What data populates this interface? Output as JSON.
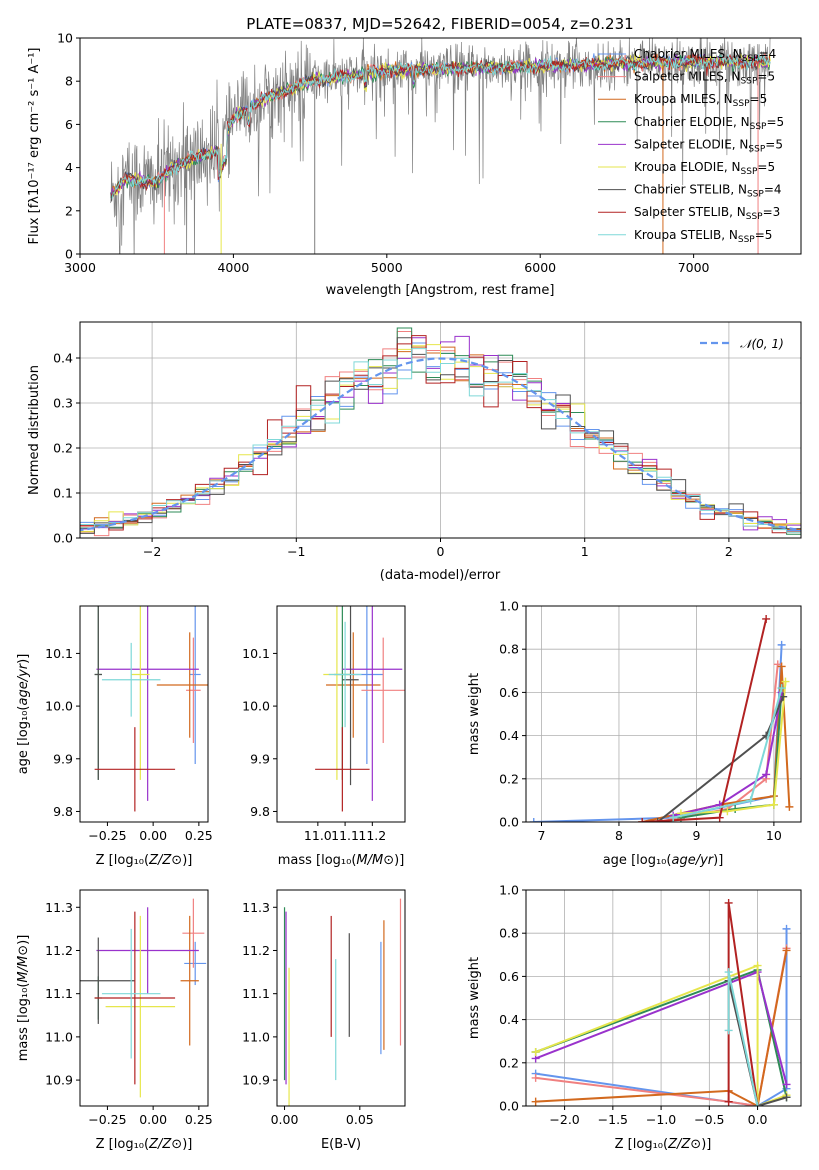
{
  "title": "PLATE=0837, MJD=52642, FIBERID=0054, z=0.231",
  "colors": {
    "chabrier_miles": "#6495ed",
    "salpeter_miles": "#f08080",
    "kroupa_miles": "#d2691e",
    "chabrier_elodie": "#2e8b57",
    "salpeter_elodie": "#9932cc",
    "kroupa_elodie": "#e6e64c",
    "chabrier_stelib": "#505050",
    "salpeter_stelib": "#b22222",
    "kroupa_stelib": "#7fd8d8",
    "data": "#808080",
    "gaussian": "#6495ed"
  },
  "chart_data": [
    {
      "id": "spectrum",
      "type": "line",
      "title": "PLATE=0837, MJD=52642, FIBERID=0054, z=0.231",
      "xlabel": "wavelength [Angstrom, rest frame]",
      "ylabel": "Flux [fλ10⁻¹⁷ erg cm⁻² s⁻¹ A⁻¹]",
      "xlim": [
        3000,
        7700
      ],
      "ylim": [
        0,
        10
      ],
      "xticks": [
        3000,
        4000,
        5000,
        6000,
        7000
      ],
      "yticks": [
        0,
        2,
        4,
        6,
        8,
        10
      ],
      "wavelength_range": [
        3200,
        7500
      ],
      "legend_position": "upper right",
      "legend": [
        {
          "label": "Chabrier MILES, N",
          "sub": "SSP",
          "suffix": "=4",
          "color_key": "chabrier_miles"
        },
        {
          "label": "Salpeter MILES, N",
          "sub": "SSP",
          "suffix": "=5",
          "color_key": "salpeter_miles"
        },
        {
          "label": "Kroupa MILES, N",
          "sub": "SSP",
          "suffix": "=5",
          "color_key": "kroupa_miles"
        },
        {
          "label": "Chabrier ELODIE, N",
          "sub": "SSP",
          "suffix": "=5",
          "color_key": "chabrier_elodie"
        },
        {
          "label": "Salpeter ELODIE, N",
          "sub": "SSP",
          "suffix": "=5",
          "color_key": "salpeter_elodie"
        },
        {
          "label": "Kroupa ELODIE, N",
          "sub": "SSP",
          "suffix": "=5",
          "color_key": "kroupa_elodie"
        },
        {
          "label": "Chabrier STELIB, N",
          "sub": "SSP",
          "suffix": "=4",
          "color_key": "chabrier_stelib"
        },
        {
          "label": "Salpeter STELIB, N",
          "sub": "SSP",
          "suffix": "=3",
          "color_key": "salpeter_stelib"
        },
        {
          "label": "Kroupa STELIB, N",
          "sub": "SSP",
          "suffix": "=5",
          "color_key": "kroupa_stelib"
        }
      ],
      "continuum_anchors": {
        "x": [
          3200,
          3300,
          3500,
          3600,
          3700,
          3900,
          4000,
          4200,
          4500,
          4800,
          5000,
          5500,
          6000,
          6500,
          7000,
          7400
        ],
        "y": [
          2.7,
          3.5,
          3.3,
          4.0,
          4.3,
          4.8,
          6.3,
          7.2,
          8.0,
          8.3,
          8.5,
          8.6,
          8.7,
          8.8,
          8.9,
          8.9
        ]
      }
    },
    {
      "id": "residuals",
      "type": "histogram",
      "xlabel": "(data-model)/error",
      "ylabel": "Normed distribution",
      "xlim": [
        -2.5,
        2.5
      ],
      "ylim": [
        0,
        0.48
      ],
      "xticks": [
        -2,
        -1,
        0,
        1,
        2
      ],
      "yticks": [
        0.0,
        0.1,
        0.2,
        0.3,
        0.4
      ],
      "legend_position": "upper right",
      "legend": [
        {
          "label": "𝒩(0, 1)",
          "color_key": "gaussian",
          "style": "dashed"
        }
      ],
      "bin_width": 0.1
    },
    {
      "id": "age_vs_Z",
      "type": "errorbar",
      "xlabel": "Z [log₁₀(Z/Z⊙)]",
      "ylabel": "age  [log₁₀(age/yr)]",
      "xlim": [
        -0.4,
        0.3
      ],
      "ylim": [
        9.78,
        10.19
      ],
      "xticks": [
        -0.25,
        0.0,
        0.25
      ],
      "yticks": [
        9.8,
        9.9,
        10.0,
        10.1
      ],
      "points": [
        {
          "color_key": "chabrier_miles",
          "x": 0.23,
          "xerr": 0.03,
          "y": 10.06,
          "yerr": 0.17
        },
        {
          "color_key": "salpeter_miles",
          "x": 0.22,
          "xerr": 0.04,
          "y": 10.03,
          "yerr": 0.1
        },
        {
          "color_key": "kroupa_miles",
          "x": 0.2,
          "xerr": 0.18,
          "y": 10.04,
          "yerr": 0.1
        },
        {
          "color_key": "chabrier_elodie",
          "x": -0.3,
          "xerr": 0.02,
          "y": 10.06,
          "yerr": 0.2
        },
        {
          "color_key": "salpeter_elodie",
          "x": -0.03,
          "xerr": 0.28,
          "y": 10.07,
          "yerr": 0.25
        },
        {
          "color_key": "kroupa_elodie",
          "x": -0.07,
          "xerr": 0.05,
          "y": 10.06,
          "yerr": 0.2
        },
        {
          "color_key": "chabrier_stelib",
          "x": -0.3,
          "xerr": 0.02,
          "y": 10.06,
          "yerr": 0.2
        },
        {
          "color_key": "salpeter_stelib",
          "x": -0.1,
          "xerr": 0.22,
          "y": 9.88,
          "yerr": 0.08
        },
        {
          "color_key": "kroupa_stelib",
          "x": -0.12,
          "xerr": 0.16,
          "y": 10.05,
          "yerr": 0.07
        }
      ]
    },
    {
      "id": "age_vs_mass",
      "type": "errorbar",
      "xlabel": "mass [log₁₀(M/M⊙)]",
      "ylabel": "",
      "xlim": [
        10.85,
        11.32
      ],
      "ylim": [
        9.78,
        10.19
      ],
      "xticks": [
        11.0,
        11.1,
        11.2
      ],
      "yticks": [
        9.8,
        9.9,
        10.0,
        10.1
      ],
      "points": [
        {
          "color_key": "chabrier_miles",
          "x": 11.18,
          "xerr": 0.06,
          "y": 10.06,
          "yerr": 0.17
        },
        {
          "color_key": "salpeter_miles",
          "x": 11.24,
          "xerr": 0.08,
          "y": 10.03,
          "yerr": 0.1
        },
        {
          "color_key": "kroupa_miles",
          "x": 11.13,
          "xerr": 0.1,
          "y": 10.04,
          "yerr": 0.1
        },
        {
          "color_key": "chabrier_elodie",
          "x": 11.09,
          "xerr": 0.03,
          "y": 10.06,
          "yerr": 0.2
        },
        {
          "color_key": "salpeter_elodie",
          "x": 11.2,
          "xerr": 0.11,
          "y": 10.07,
          "yerr": 0.25
        },
        {
          "color_key": "kroupa_elodie",
          "x": 11.07,
          "xerr": 0.05,
          "y": 10.06,
          "yerr": 0.2
        },
        {
          "color_key": "chabrier_stelib",
          "x": 11.12,
          "xerr": 0.03,
          "y": 10.05,
          "yerr": 0.2
        },
        {
          "color_key": "salpeter_stelib",
          "x": 11.09,
          "xerr": 0.1,
          "y": 9.88,
          "yerr": 0.08
        },
        {
          "color_key": "kroupa_stelib",
          "x": 11.1,
          "xerr": 0.06,
          "y": 10.06,
          "yerr": 0.1
        }
      ]
    },
    {
      "id": "weight_vs_age",
      "type": "line",
      "xlabel": "age  [log₁₀(age/yr)]",
      "ylabel": "mass weight",
      "xlim": [
        6.8,
        10.35
      ],
      "ylim": [
        0,
        1.0
      ],
      "xticks": [
        7,
        8,
        9,
        10
      ],
      "yticks": [
        0.0,
        0.2,
        0.4,
        0.6,
        0.8,
        1.0
      ],
      "series": [
        {
          "color_key": "chabrier_miles",
          "x": [
            6.9,
            8.7,
            10.0,
            10.1
          ],
          "y": [
            0.0,
            0.02,
            0.12,
            0.82
          ]
        },
        {
          "color_key": "salpeter_miles",
          "x": [
            8.5,
            9.4,
            9.9,
            10.05
          ],
          "y": [
            0.0,
            0.06,
            0.2,
            0.73
          ]
        },
        {
          "color_key": "kroupa_miles",
          "x": [
            8.3,
            9.3,
            10.0,
            10.1,
            10.2
          ],
          "y": [
            0.0,
            0.08,
            0.12,
            0.72,
            0.07
          ]
        },
        {
          "color_key": "chabrier_elodie",
          "x": [
            8.8,
            9.5,
            10.0,
            10.1
          ],
          "y": [
            0.02,
            0.06,
            0.08,
            0.62
          ]
        },
        {
          "color_key": "salpeter_elodie",
          "x": [
            8.7,
            9.3,
            9.9,
            10.1
          ],
          "y": [
            0.03,
            0.08,
            0.22,
            0.6
          ]
        },
        {
          "color_key": "kroupa_elodie",
          "x": [
            8.8,
            9.4,
            10.0,
            10.15
          ],
          "y": [
            0.04,
            0.05,
            0.08,
            0.65
          ]
        },
        {
          "color_key": "chabrier_stelib",
          "x": [
            8.5,
            9.9,
            10.12
          ],
          "y": [
            0.0,
            0.4,
            0.58
          ]
        },
        {
          "color_key": "salpeter_stelib",
          "x": [
            8.3,
            9.3,
            9.9
          ],
          "y": [
            0.0,
            0.02,
            0.94
          ]
        },
        {
          "color_key": "kroupa_stelib",
          "x": [
            8.7,
            9.7,
            10.1
          ],
          "y": [
            0.02,
            0.1,
            0.62
          ]
        }
      ]
    },
    {
      "id": "mass_vs_Z",
      "type": "errorbar",
      "xlabel": "Z [log₁₀(Z/Z⊙)]",
      "ylabel": "mass [log₁₀(M/M⊙)]",
      "xlim": [
        -0.4,
        0.3
      ],
      "ylim": [
        10.84,
        11.34
      ],
      "xticks": [
        -0.25,
        0.0,
        0.25
      ],
      "yticks": [
        10.9,
        11.0,
        11.1,
        11.2,
        11.3
      ],
      "points": [
        {
          "color_key": "chabrier_miles",
          "x": 0.23,
          "xerr": 0.06,
          "y": 11.17,
          "yerr": 0.05
        },
        {
          "color_key": "salpeter_miles",
          "x": 0.22,
          "xerr": 0.06,
          "y": 11.24,
          "yerr": 0.08
        },
        {
          "color_key": "kroupa_miles",
          "x": 0.2,
          "xerr": 0.05,
          "y": 11.13,
          "yerr": 0.15
        },
        {
          "color_key": "chabrier_elodie",
          "x": -0.3,
          "xerr": 0.02,
          "y": 11.09,
          "yerr": 0.05
        },
        {
          "color_key": "salpeter_elodie",
          "x": -0.03,
          "xerr": 0.28,
          "y": 11.2,
          "yerr": 0.1
        },
        {
          "color_key": "kroupa_elodie",
          "x": -0.07,
          "xerr": 0.19,
          "y": 11.07,
          "yerr": 0.21
        },
        {
          "color_key": "chabrier_stelib",
          "x": -0.3,
          "xerr": 0.2,
          "y": 11.13,
          "yerr": 0.1
        },
        {
          "color_key": "salpeter_stelib",
          "x": -0.1,
          "xerr": 0.22,
          "y": 11.09,
          "yerr": 0.2
        },
        {
          "color_key": "kroupa_stelib",
          "x": -0.12,
          "xerr": 0.16,
          "y": 11.1,
          "yerr": 0.15
        }
      ]
    },
    {
      "id": "mass_vs_ebv",
      "type": "errorbar",
      "xlabel": "E(B-V)",
      "ylabel": "",
      "xlim": [
        -0.005,
        0.08
      ],
      "ylim": [
        10.84,
        11.34
      ],
      "xticks": [
        0.0,
        0.05
      ],
      "yticks": [
        10.9,
        11.0,
        11.1,
        11.2,
        11.3
      ],
      "points": [
        {
          "color_key": "chabrier_miles",
          "x": 0.064,
          "y": 11.09,
          "yerr": 0.13
        },
        {
          "color_key": "salpeter_miles",
          "x": 0.077,
          "y": 11.15,
          "yerr": 0.17
        },
        {
          "color_key": "kroupa_miles",
          "x": 0.066,
          "y": 11.12,
          "yerr": 0.15
        },
        {
          "color_key": "chabrier_elodie",
          "x": 0.0,
          "y": 11.1,
          "yerr": 0.2
        },
        {
          "color_key": "salpeter_elodie",
          "x": 0.001,
          "y": 11.09,
          "yerr": 0.2
        },
        {
          "color_key": "kroupa_elodie",
          "x": 0.003,
          "y": 11.0,
          "yerr": 0.16
        },
        {
          "color_key": "chabrier_stelib",
          "x": 0.043,
          "y": 11.12,
          "yerr": 0.12
        },
        {
          "color_key": "salpeter_stelib",
          "x": 0.031,
          "y": 11.14,
          "yerr": 0.14
        },
        {
          "color_key": "kroupa_stelib",
          "x": 0.034,
          "y": 11.04,
          "yerr": 0.14
        }
      ]
    },
    {
      "id": "weight_vs_Z",
      "type": "line",
      "xlabel": "Z [log₁₀(Z/Z⊙)]",
      "ylabel": "mass weight",
      "xlim": [
        -2.4,
        0.45
      ],
      "ylim": [
        0,
        1.0
      ],
      "xticks": [
        -2.0,
        -1.5,
        -1.0,
        -0.5,
        0.0
      ],
      "yticks": [
        0.0,
        0.2,
        0.4,
        0.6,
        0.8,
        1.0
      ],
      "series": [
        {
          "color_key": "chabrier_miles",
          "x": [
            -2.3,
            0.0,
            0.3,
            0.3
          ],
          "y": [
            0.15,
            0.0,
            0.08,
            0.82
          ]
        },
        {
          "color_key": "salpeter_miles",
          "x": [
            -2.3,
            -0.3,
            0.0,
            0.3
          ],
          "y": [
            0.13,
            0.02,
            0.0,
            0.73
          ]
        },
        {
          "color_key": "kroupa_miles",
          "x": [
            -2.3,
            -0.3,
            0.0,
            0.3
          ],
          "y": [
            0.02,
            0.07,
            0.0,
            0.72
          ]
        },
        {
          "color_key": "chabrier_elodie",
          "x": [
            -2.3,
            0.0,
            0.3
          ],
          "y": [
            0.25,
            0.63,
            0.04
          ]
        },
        {
          "color_key": "salpeter_elodie",
          "x": [
            -2.3,
            0.0,
            0.3
          ],
          "y": [
            0.22,
            0.62,
            0.1
          ]
        },
        {
          "color_key": "kroupa_elodie",
          "x": [
            -2.3,
            0.0,
            0.0,
            0.3
          ],
          "y": [
            0.25,
            0.65,
            0.0,
            0.05
          ]
        },
        {
          "color_key": "chabrier_stelib",
          "x": [
            -0.3,
            0.0,
            0.3
          ],
          "y": [
            0.58,
            0.0,
            0.04
          ]
        },
        {
          "color_key": "salpeter_stelib",
          "x": [
            -0.3,
            -0.3,
            0.0
          ],
          "y": [
            0.02,
            0.94,
            0.0
          ]
        },
        {
          "color_key": "kroupa_stelib",
          "x": [
            -0.3,
            -0.3,
            0.0
          ],
          "y": [
            0.35,
            0.62,
            0.0
          ]
        }
      ]
    }
  ]
}
